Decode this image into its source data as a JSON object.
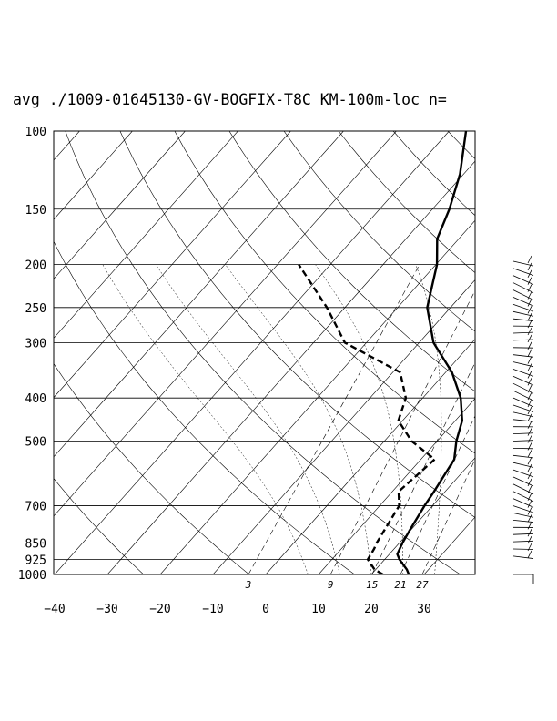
{
  "chart_data": {
    "type": "line",
    "title": "avg ./1009-01645130-GV-BOGFIX-T8C KM-100m-loc n=",
    "y_axis": {
      "scale": "log",
      "orientation": "inverted",
      "range": [
        1000,
        100
      ],
      "ticks": [
        100,
        150,
        200,
        250,
        300,
        400,
        500,
        700,
        850,
        925,
        1000
      ],
      "tick_labels": [
        "100",
        "150",
        "200",
        "250",
        "300",
        "400",
        "500",
        "700",
        "850",
        "925",
        "1000"
      ]
    },
    "x_axis": {
      "range": [
        -40,
        40
      ],
      "ticks": [
        -40,
        -30,
        -20,
        -10,
        0,
        10,
        20,
        30
      ],
      "tick_labels": [
        "−40",
        "−30",
        "−20",
        "−10",
        "0",
        "10",
        "20",
        "30"
      ]
    },
    "mixing_ratio_labels": [
      "3",
      "9",
      "15",
      "21",
      "27"
    ],
    "grid": true,
    "series": [
      {
        "style": "solid",
        "x": [
          27.1,
          25.9,
          22.8,
          21.5,
          20.6,
          19.9,
          18.5,
          17.9,
          16.3,
          13.6,
          11.3,
          7.2,
          1.2,
          -7.3,
          -14.4,
          -19.8,
          -24.1,
          -26.8,
          -30.7,
          -36.8
        ],
        "y": [
          1000,
          975,
          925,
          900,
          850,
          800,
          700,
          650,
          550,
          500,
          450,
          400,
          350,
          300,
          250,
          200,
          175,
          150,
          125,
          100
        ]
      },
      {
        "style": "dashed",
        "x": [
          22.2,
          19.8,
          16.8,
          16.2,
          15.7,
          13.7,
          11.2,
          12.6,
          5.1,
          -0.8,
          -3.2,
          -8.6,
          -24.1,
          -33.4,
          -46.0
        ],
        "y": [
          1000,
          975,
          925,
          875,
          850,
          700,
          650,
          550,
          500,
          450,
          400,
          350,
          300,
          250,
          200
        ]
      }
    ],
    "wind_barbs_column": true
  }
}
